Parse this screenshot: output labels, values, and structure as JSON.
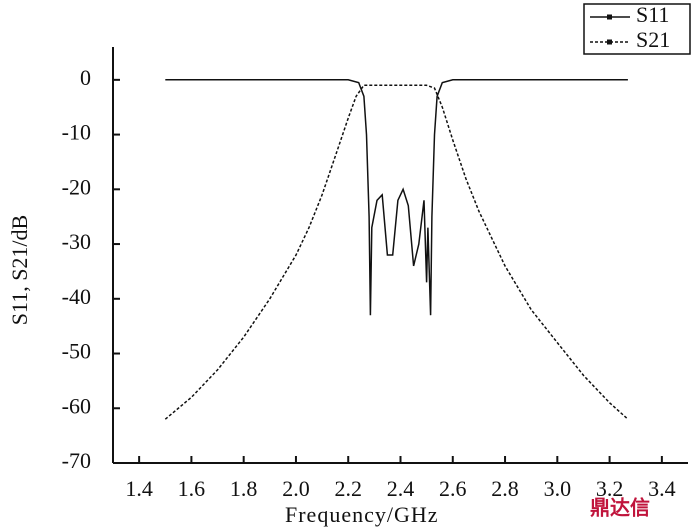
{
  "chart_data": {
    "type": "line",
    "xlabel": "Frequency/GHz",
    "ylabel": "S11, S21/dB",
    "xlim": [
      1.3,
      3.5
    ],
    "ylim": [
      -70,
      6
    ],
    "xticks": [
      1.4,
      1.6,
      1.8,
      {
        "value": 2.0,
        "label": "2.0"
      },
      2.2,
      2.4,
      2.6,
      2.8,
      {
        "value": 3.0,
        "label": "3.0"
      },
      3.2,
      3.4
    ],
    "yticks": [
      0,
      -10,
      -20,
      -30,
      -40,
      -50,
      -60,
      -70
    ],
    "legend": "upper right",
    "watermark": "鼎达信",
    "series": [
      {
        "name": "S11",
        "color": "#111111",
        "dash": "solid",
        "x": [
          1.5,
          2.2,
          2.24,
          2.26,
          2.27,
          2.28,
          2.285,
          2.29,
          2.31,
          2.33,
          2.35,
          2.37,
          2.39,
          2.41,
          2.43,
          2.45,
          2.47,
          2.49,
          2.5,
          2.505,
          2.515,
          2.52,
          2.53,
          2.54,
          2.56,
          2.6,
          3.27
        ],
        "values": [
          0,
          0,
          -0.5,
          -3,
          -10,
          -25,
          -43,
          -27,
          -22,
          -21,
          -32,
          -32,
          -22,
          -20,
          -23,
          -34,
          -30,
          -22,
          -37,
          -27,
          -43,
          -25,
          -10,
          -3,
          -0.5,
          0,
          0
        ]
      },
      {
        "name": "S21",
        "color": "#111111",
        "dash": "dashed",
        "x": [
          1.5,
          1.6,
          1.7,
          1.8,
          1.9,
          2.0,
          2.05,
          2.1,
          2.15,
          2.2,
          2.23,
          2.26,
          2.3,
          2.5,
          2.53,
          2.56,
          2.6,
          2.65,
          2.7,
          2.8,
          2.9,
          3.0,
          3.1,
          3.2,
          3.27
        ],
        "values": [
          -62,
          -58,
          -53,
          -47,
          -40,
          -32,
          -27,
          -21,
          -14,
          -7,
          -3,
          -1,
          -1,
          -1,
          -1.5,
          -5,
          -11,
          -18,
          -24,
          -34,
          -42,
          -48,
          -54,
          -59,
          -62
        ]
      }
    ]
  }
}
